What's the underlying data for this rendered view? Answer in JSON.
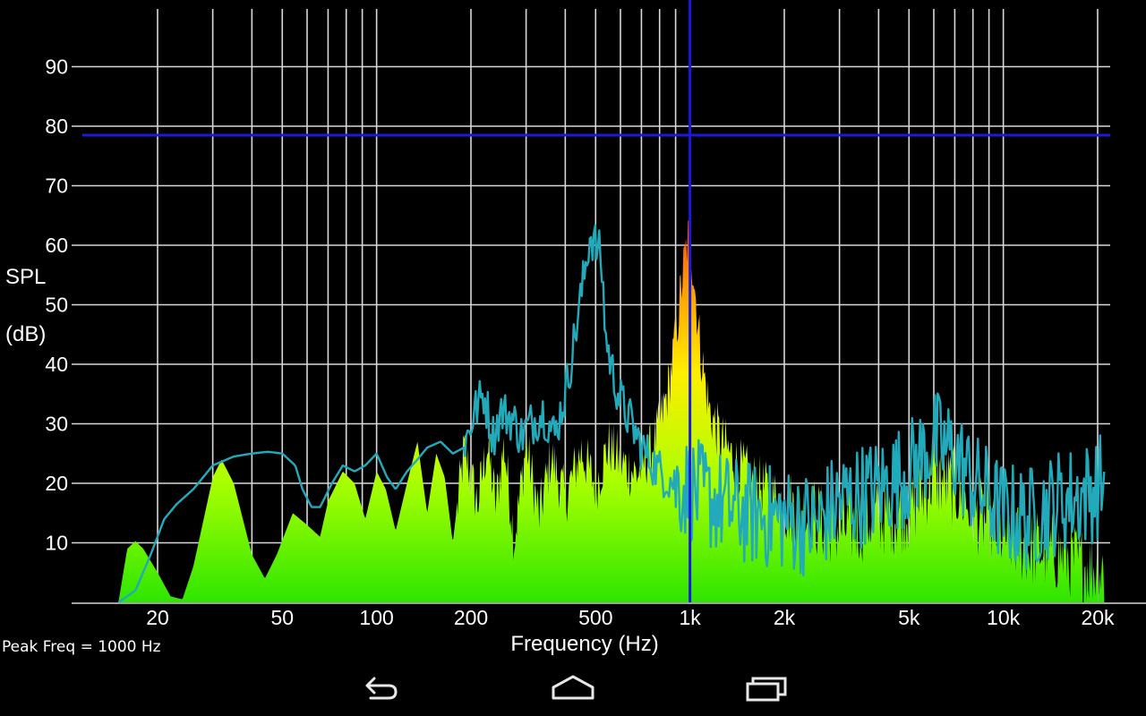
{
  "chart_data": {
    "type": "area",
    "xscale": "log",
    "xlim": [
      14,
      22000
    ],
    "ylim": [
      0,
      100
    ],
    "xlabel": "Frequency (Hz)",
    "ylabel_lines": [
      "SPL",
      "(dB)"
    ],
    "xtick_labels": [
      {
        "value": 20,
        "label": "20"
      },
      {
        "value": 50,
        "label": "50"
      },
      {
        "value": 100,
        "label": "100"
      },
      {
        "value": 200,
        "label": "200"
      },
      {
        "value": 500,
        "label": "500"
      },
      {
        "value": 1000,
        "label": "1k"
      },
      {
        "value": 2000,
        "label": "2k"
      },
      {
        "value": 5000,
        "label": "5k"
      },
      {
        "value": 10000,
        "label": "10k"
      },
      {
        "value": 20000,
        "label": "20k"
      }
    ],
    "ytick_labels": [
      10,
      20,
      30,
      40,
      50,
      60,
      70,
      80,
      90
    ],
    "x_gridlines": [
      20,
      30,
      40,
      50,
      60,
      70,
      80,
      90,
      100,
      200,
      300,
      400,
      500,
      600,
      700,
      800,
      900,
      1000,
      2000,
      3000,
      4000,
      5000,
      6000,
      7000,
      8000,
      9000,
      10000,
      20000
    ],
    "y_gridlines": [
      10,
      20,
      30,
      40,
      50,
      60,
      70,
      80,
      90
    ],
    "grid": true,
    "cursor": {
      "freq": 1000,
      "spl": 78.5,
      "color": "#1a1adc"
    },
    "series": [
      {
        "kind": "spectrum_fill",
        "colors": {
          "low": "#33ee00",
          "mid": "#ccff00",
          "high": "#ffcc00",
          "peak": "#ff2200"
        },
        "values": [
          [
            15,
            0
          ],
          [
            16,
            9
          ],
          [
            17,
            10.3
          ],
          [
            18,
            9
          ],
          [
            20,
            5
          ],
          [
            22,
            1
          ],
          [
            24,
            0.5
          ],
          [
            26,
            6
          ],
          [
            30,
            21
          ],
          [
            32,
            24
          ],
          [
            35,
            20
          ],
          [
            40,
            8
          ],
          [
            44,
            4
          ],
          [
            48,
            8
          ],
          [
            54,
            15
          ],
          [
            60,
            13
          ],
          [
            66,
            11
          ],
          [
            70,
            17
          ],
          [
            78,
            22
          ],
          [
            85,
            20
          ],
          [
            92,
            14
          ],
          [
            100,
            22
          ],
          [
            107,
            19
          ],
          [
            115,
            12
          ],
          [
            125,
            20
          ],
          [
            135,
            27
          ],
          [
            145,
            15
          ],
          [
            155,
            25
          ],
          [
            165,
            21
          ],
          [
            175,
            10
          ],
          [
            190,
            26
          ],
          [
            210,
            17
          ],
          [
            225,
            27
          ],
          [
            240,
            17
          ],
          [
            255,
            27
          ],
          [
            275,
            11
          ],
          [
            300,
            27
          ],
          [
            330,
            15
          ],
          [
            360,
            25
          ],
          [
            400,
            18
          ],
          [
            450,
            26
          ],
          [
            500,
            20
          ],
          [
            550,
            27
          ],
          [
            600,
            24
          ],
          [
            680,
            22
          ],
          [
            750,
            26
          ],
          [
            800,
            30
          ],
          [
            850,
            36
          ],
          [
            900,
            45
          ],
          [
            950,
            56
          ],
          [
            980,
            61
          ],
          [
            1000,
            62
          ],
          [
            1030,
            55
          ],
          [
            1080,
            43
          ],
          [
            1150,
            33
          ],
          [
            1250,
            28
          ],
          [
            1400,
            24
          ],
          [
            1600,
            21
          ],
          [
            1800,
            19
          ],
          [
            2000,
            17
          ],
          [
            2500,
            15
          ],
          [
            3000,
            13
          ],
          [
            4000,
            15
          ],
          [
            5000,
            16
          ],
          [
            6000,
            22
          ],
          [
            7000,
            20
          ],
          [
            8000,
            16
          ],
          [
            10000,
            12
          ],
          [
            12000,
            10
          ],
          [
            15000,
            9
          ],
          [
            18000,
            7
          ],
          [
            21000,
            6
          ]
        ]
      },
      {
        "kind": "line",
        "color": "#22aabb",
        "values": [
          [
            15,
            0
          ],
          [
            17,
            2
          ],
          [
            19,
            8
          ],
          [
            21,
            14
          ],
          [
            23,
            16.5
          ],
          [
            26,
            19
          ],
          [
            30,
            23
          ],
          [
            35,
            24.5
          ],
          [
            40,
            25
          ],
          [
            45,
            25.3
          ],
          [
            50,
            25
          ],
          [
            55,
            23
          ],
          [
            58,
            19
          ],
          [
            62,
            16
          ],
          [
            66,
            16
          ],
          [
            72,
            20
          ],
          [
            78,
            23
          ],
          [
            85,
            22
          ],
          [
            92,
            23
          ],
          [
            100,
            25
          ],
          [
            108,
            21
          ],
          [
            115,
            19
          ],
          [
            125,
            22
          ],
          [
            135,
            24
          ],
          [
            145,
            26
          ],
          [
            160,
            27
          ],
          [
            175,
            25
          ],
          [
            190,
            26
          ],
          [
            205,
            32
          ],
          [
            220,
            35
          ],
          [
            235,
            28
          ],
          [
            250,
            32
          ],
          [
            270,
            31
          ],
          [
            290,
            28
          ],
          [
            310,
            30
          ],
          [
            340,
            32
          ],
          [
            370,
            28
          ],
          [
            400,
            35
          ],
          [
            430,
            45
          ],
          [
            460,
            55
          ],
          [
            480,
            62
          ],
          [
            500,
            60
          ],
          [
            520,
            58
          ],
          [
            540,
            44
          ],
          [
            570,
            38
          ],
          [
            600,
            34
          ],
          [
            650,
            30
          ],
          [
            700,
            26
          ],
          [
            800,
            22
          ],
          [
            900,
            20
          ],
          [
            1000,
            19
          ],
          [
            1200,
            17
          ],
          [
            1500,
            15
          ],
          [
            2000,
            14
          ],
          [
            2500,
            13
          ],
          [
            3000,
            17
          ],
          [
            4000,
            19
          ],
          [
            5000,
            22
          ],
          [
            6000,
            27
          ],
          [
            7000,
            25
          ],
          [
            8000,
            20
          ],
          [
            10000,
            15
          ],
          [
            12000,
            14
          ],
          [
            15000,
            17
          ],
          [
            18000,
            18
          ],
          [
            21000,
            20
          ]
        ]
      }
    ]
  },
  "status": {
    "peak_text": "Peak Freq = 1000 Hz"
  },
  "navbar": {
    "back_icon": "back-arrow-icon",
    "home_icon": "home-icon",
    "recents_icon": "recent-apps-icon"
  }
}
